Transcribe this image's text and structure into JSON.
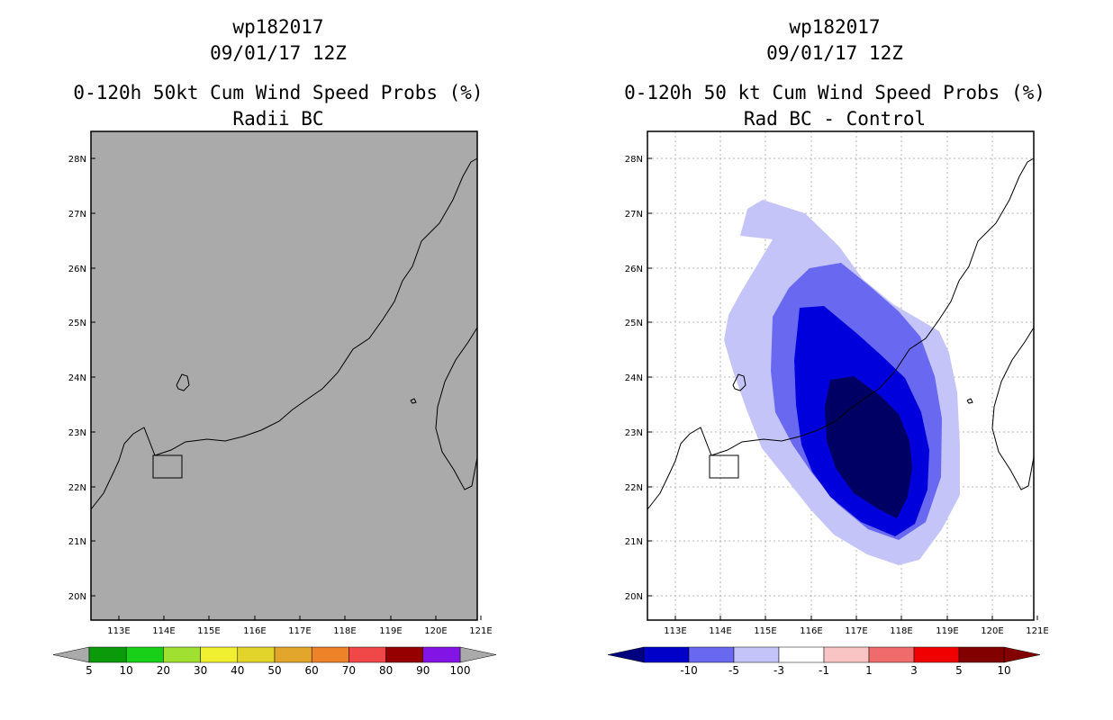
{
  "left": {
    "title1": "wp182017",
    "title2": "09/01/17 12Z",
    "title3": "0-120h 50kt Cum Wind Speed Probs (%)",
    "title4": "Radii BC",
    "colors": [
      "#0a9a0a",
      "#18d018",
      "#a0e030",
      "#f0f030",
      "#e2d42a",
      "#e2a62c",
      "#ee8228",
      "#f04848",
      "#960000",
      "#8214e6"
    ],
    "labels": [
      "5",
      "10",
      "20",
      "30",
      "40",
      "50",
      "60",
      "70",
      "80",
      "90",
      "100"
    ],
    "fill": "#aaaaaa"
  },
  "right": {
    "title1": "wp182017",
    "title2": "09/01/17 12Z",
    "title3": "0-120h 50 kt Cum Wind Speed Probs (%)",
    "title4": "Rad BC - Control",
    "colors": [
      "#0000c8",
      "#6868f0",
      "#c4c4f8",
      "#ffffff",
      "#f8c4c4",
      "#f06c6c",
      "#f00000",
      "#820000"
    ],
    "labels": [
      "-10",
      "-5",
      "-3",
      "-1",
      "1",
      "3",
      "5",
      "10"
    ],
    "contour_colors": [
      "#c4c4f8",
      "#6868f0",
      "#0000dc",
      "#000064"
    ]
  },
  "axes": {
    "lon_ticks": [
      "113E",
      "114E",
      "115E",
      "116E",
      "117E",
      "118E",
      "119E",
      "120E",
      "121E"
    ],
    "lat_ticks": [
      "28N",
      "27N",
      "26N",
      "25N",
      "24N",
      "23N",
      "22N",
      "21N",
      "20N"
    ]
  }
}
